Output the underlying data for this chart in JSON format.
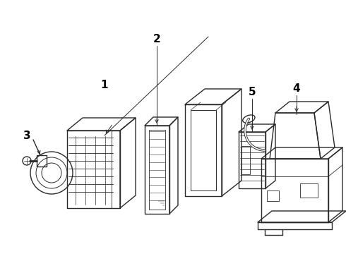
{
  "background_color": "#f0f0f0",
  "line_color": "#2a2a2a",
  "label_color": "#000000",
  "figsize": [
    4.9,
    3.6
  ],
  "dpi": 100,
  "lw_main": 1.0,
  "lw_detail": 0.5,
  "lw_leader": 0.7
}
